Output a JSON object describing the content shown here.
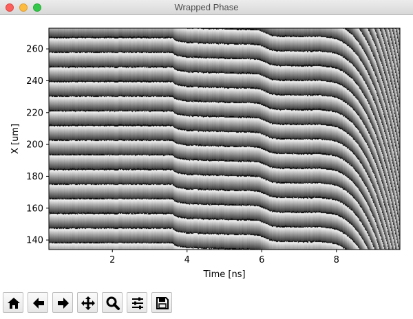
{
  "window": {
    "title": "Wrapped Phase"
  },
  "toolbar": {
    "buttons": [
      {
        "name": "home-button",
        "icon": "home-icon"
      },
      {
        "name": "back-button",
        "icon": "arrow-left-icon"
      },
      {
        "name": "forward-button",
        "icon": "arrow-right-icon"
      },
      {
        "name": "pan-button",
        "icon": "move-icon"
      },
      {
        "name": "zoom-button",
        "icon": "magnifier-icon"
      },
      {
        "name": "configure-subplots-button",
        "icon": "sliders-icon"
      },
      {
        "name": "save-button",
        "icon": "floppy-disk-icon"
      }
    ]
  },
  "chart_data": {
    "type": "heatmap",
    "colormap": "gray",
    "title": "",
    "xlabel": "Time [ns]",
    "ylabel": "X [um]",
    "xlim": [
      0.3,
      9.7
    ],
    "ylim": [
      134,
      273
    ],
    "xticks": [
      2,
      4,
      6,
      8
    ],
    "yticks": [
      140,
      160,
      180,
      200,
      220,
      240,
      260
    ],
    "phase_stripe_period_um": 9.2,
    "phase_jump_times_ns": [
      3.6,
      6.1
    ],
    "fringe_acceleration_start_ns": 7.4,
    "fringe_max_density_ns": 8.4,
    "grid": false,
    "legend": "none"
  }
}
